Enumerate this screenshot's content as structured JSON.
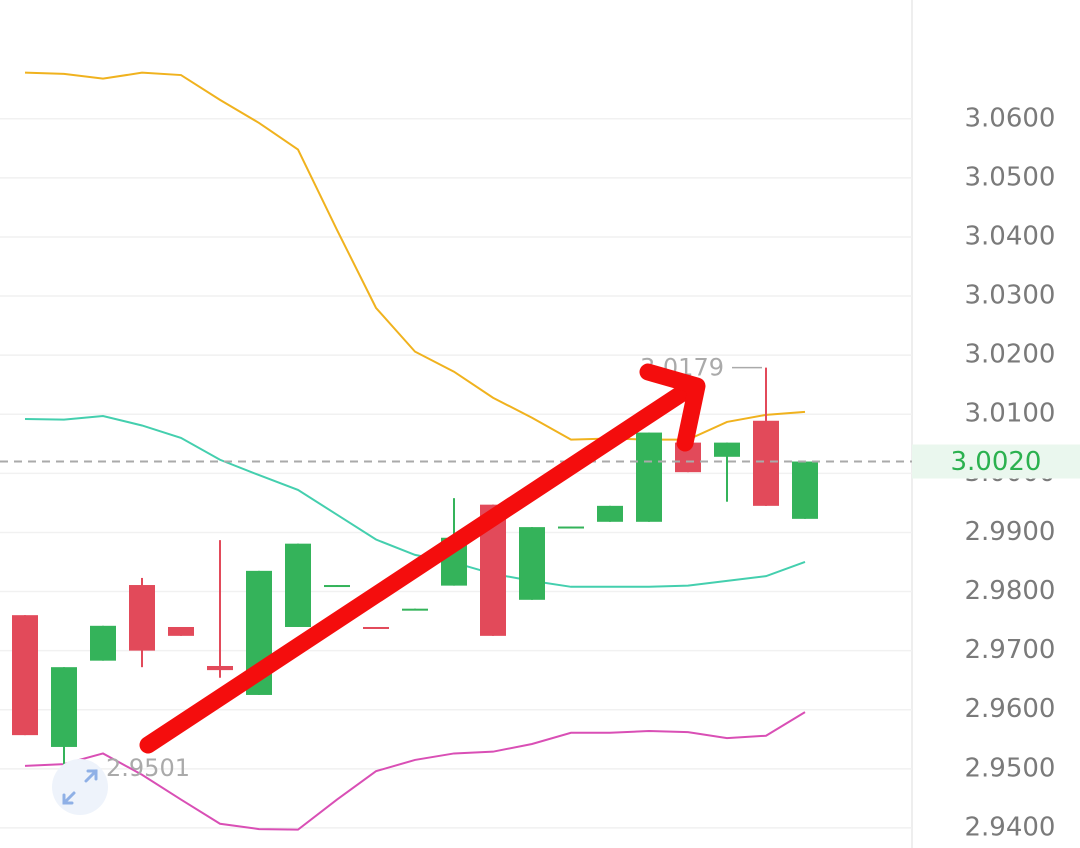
{
  "chart_data": {
    "type": "candlestick",
    "ylim": [
      2.9366,
      3.0801
    ],
    "yticks": [
      {
        "value": 2.94,
        "label": "2.9400"
      },
      {
        "value": 2.95,
        "label": "2.9500"
      },
      {
        "value": 2.96,
        "label": "2.9600"
      },
      {
        "value": 2.97,
        "label": "2.9700"
      },
      {
        "value": 2.98,
        "label": "2.9800"
      },
      {
        "value": 2.99,
        "label": "2.9900"
      },
      {
        "value": 3.0,
        "label": "3.0000"
      },
      {
        "value": 3.01,
        "label": "3.0100"
      },
      {
        "value": 3.02,
        "label": "3.0200"
      },
      {
        "value": 3.03,
        "label": "3.0300"
      },
      {
        "value": 3.04,
        "label": "3.0400"
      },
      {
        "value": 3.05,
        "label": "3.0500"
      },
      {
        "value": 3.06,
        "label": "3.0600"
      }
    ],
    "grid": true,
    "up_color": "#34b35a",
    "down_color": "#e24a5a",
    "candles": [
      {
        "open": 2.976,
        "high": 2.976,
        "low": 2.9557,
        "close": 2.9557
      },
      {
        "open": 2.9537,
        "high": 2.9672,
        "low": 2.9501,
        "close": 2.9672
      },
      {
        "open": 2.9683,
        "high": 2.9742,
        "low": 2.9683,
        "close": 2.9742
      },
      {
        "open": 2.9811,
        "high": 2.9823,
        "low": 2.9672,
        "close": 2.97
      },
      {
        "open": 2.974,
        "high": 2.974,
        "low": 2.9725,
        "close": 2.9725
      },
      {
        "open": 2.9674,
        "high": 2.9887,
        "low": 2.9654,
        "close": 2.9667
      },
      {
        "open": 2.9625,
        "high": 2.9835,
        "low": 2.9625,
        "close": 2.9835
      },
      {
        "open": 2.974,
        "high": 2.9881,
        "low": 2.974,
        "close": 2.9881
      },
      {
        "open": 2.981,
        "high": 2.9811,
        "low": 2.981,
        "close": 2.9811
      },
      {
        "open": 2.974,
        "high": 2.974,
        "low": 2.9739,
        "close": 2.9739
      },
      {
        "open": 2.977,
        "high": 2.9771,
        "low": 2.977,
        "close": 2.9771
      },
      {
        "open": 2.981,
        "high": 2.9958,
        "low": 2.981,
        "close": 2.9891
      },
      {
        "open": 2.9947,
        "high": 2.9947,
        "low": 2.9725,
        "close": 2.9725
      },
      {
        "open": 2.9786,
        "high": 2.9909,
        "low": 2.9786,
        "close": 2.9909
      },
      {
        "open": 2.9908,
        "high": 2.991,
        "low": 2.9908,
        "close": 2.991
      },
      {
        "open": 2.9918,
        "high": 2.9945,
        "low": 2.9918,
        "close": 2.9945
      },
      {
        "open": 2.9918,
        "high": 3.0069,
        "low": 2.9918,
        "close": 3.0069
      },
      {
        "open": 3.0052,
        "high": 3.0052,
        "low": 3.0002,
        "close": 3.0002
      },
      {
        "open": 3.0028,
        "high": 3.0052,
        "low": 2.9952,
        "close": 3.0052
      },
      {
        "open": 3.0089,
        "high": 3.0179,
        "low": 2.9945,
        "close": 2.9945
      },
      {
        "open": 2.9923,
        "high": 3.0021,
        "low": 2.9923,
        "close": 3.002
      }
    ],
    "lines": [
      {
        "color": "#f0b21e",
        "values": [
          3.0678,
          3.0676,
          3.0668,
          3.0678,
          3.0674,
          3.0632,
          3.0593,
          3.0548,
          3.0412,
          3.028,
          3.0206,
          3.0172,
          3.0128,
          3.0094,
          3.0057,
          3.0059,
          3.0057,
          3.0057,
          3.0087,
          3.0099,
          3.0104
        ]
      },
      {
        "color": "#44cfae",
        "values": [
          3.0092,
          3.0091,
          3.0097,
          3.0081,
          3.006,
          3.0023,
          2.9997,
          2.9972,
          2.993,
          2.9888,
          2.9862,
          2.9849,
          2.983,
          2.9818,
          2.9808,
          2.9808,
          2.9808,
          2.981,
          2.9818,
          2.9826,
          2.985
        ]
      },
      {
        "color": "#d94fb5",
        "values": [
          2.9505,
          2.9508,
          2.9526,
          2.949,
          2.9448,
          2.9407,
          2.9398,
          2.9397,
          2.9448,
          2.9496,
          2.9515,
          2.9526,
          2.9529,
          2.9542,
          2.9561,
          2.9561,
          2.9564,
          2.9562,
          2.9552,
          2.9556,
          2.9596
        ]
      }
    ],
    "max_marker": 3.0179,
    "min_marker": 2.9501,
    "last_price": {
      "value": 3.002,
      "label": "3.0020"
    }
  }
}
